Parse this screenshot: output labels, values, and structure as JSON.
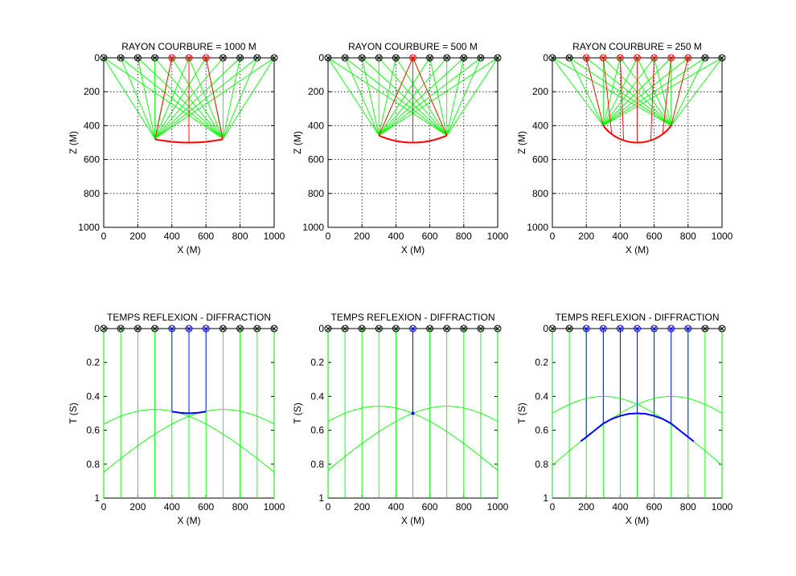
{
  "figure": {
    "background": "#ffffff",
    "text_color": "#000000"
  },
  "colors": {
    "direct_ray": "#00ff00",
    "reflected_ray": "#ff0000",
    "diffraction": "#0000ff",
    "receiver_marker": "#000000"
  },
  "chart_data": [
    {
      "type": "line",
      "panel": "top-left",
      "title": "RAYON COURBURE = 1000 M",
      "xlabel": "X (M)",
      "ylabel": "Z (M)",
      "xlim": [
        0,
        1000
      ],
      "ylim": [
        1000,
        0
      ],
      "y_reversed": true,
      "xticks": [
        0,
        200,
        400,
        600,
        800,
        1000
      ],
      "yticks": [
        0,
        200,
        400,
        600,
        800,
        1000
      ],
      "grid": true,
      "radius": 1000,
      "center": [
        500,
        -500
      ],
      "surface_points": [
        0,
        100,
        200,
        300,
        400,
        500,
        600,
        700,
        800,
        900,
        1000
      ],
      "highlighted_points": [
        400,
        500,
        600
      ],
      "reflector": {
        "x_start": 300,
        "x_end": 700
      },
      "ray_bundles": [
        {
          "point": [
            300,
            477
          ],
          "to": [
            0,
            100,
            200,
            300,
            400,
            500,
            600,
            700,
            800,
            900,
            1000
          ]
        },
        {
          "point": [
            700,
            477
          ],
          "to": [
            0,
            100,
            200,
            300,
            400,
            500,
            600,
            700,
            800,
            900,
            1000
          ]
        }
      ],
      "normals": [
        {
          "from": [
            400,
            0
          ],
          "to": [
            302,
            479
          ]
        },
        {
          "from": [
            500,
            0
          ],
          "to": [
            500,
            500
          ]
        },
        {
          "from": [
            600,
            0
          ],
          "to": [
            698,
            479
          ]
        }
      ]
    },
    {
      "type": "line",
      "panel": "top-middle",
      "title": "RAYON COURBURE = 500 M",
      "xlabel": "X (M)",
      "ylabel": "Z (M)",
      "xlim": [
        0,
        1000
      ],
      "ylim": [
        1000,
        0
      ],
      "y_reversed": true,
      "xticks": [
        0,
        200,
        400,
        600,
        800,
        1000
      ],
      "yticks": [
        0,
        200,
        400,
        600,
        800,
        1000
      ],
      "grid": true,
      "radius": 500,
      "center": [
        500,
        0
      ],
      "surface_points": [
        0,
        100,
        200,
        300,
        400,
        500,
        600,
        700,
        800,
        900,
        1000
      ],
      "highlighted_points": [
        500
      ],
      "reflector": {
        "x_start": 300,
        "x_end": 700
      },
      "ray_bundles": [
        {
          "point": [
            300,
            458
          ],
          "to": [
            0,
            100,
            200,
            300,
            400,
            500,
            600,
            700,
            800,
            900,
            1000
          ]
        },
        {
          "point": [
            700,
            458
          ],
          "to": [
            0,
            100,
            200,
            300,
            400,
            500,
            600,
            700,
            800,
            900,
            1000
          ]
        }
      ],
      "normals": [
        {
          "from": [
            500,
            0
          ],
          "to": [
            300,
            458
          ]
        },
        {
          "from": [
            500,
            0
          ],
          "to": [
            500,
            500
          ]
        },
        {
          "from": [
            500,
            0
          ],
          "to": [
            700,
            458
          ]
        }
      ]
    },
    {
      "type": "line",
      "panel": "top-right",
      "title": "RAYON COURBURE = 250 M",
      "xlabel": "X (M)",
      "ylabel": "Z (M)",
      "xlim": [
        0,
        1000
      ],
      "ylim": [
        1000,
        0
      ],
      "y_reversed": true,
      "xticks": [
        0,
        200,
        400,
        600,
        800,
        1000
      ],
      "yticks": [
        0,
        200,
        400,
        600,
        800,
        1000
      ],
      "grid": true,
      "radius": 250,
      "center": [
        500,
        250
      ],
      "surface_points": [
        0,
        100,
        200,
        300,
        400,
        500,
        600,
        700,
        800,
        900,
        1000
      ],
      "highlighted_points": [
        200,
        300,
        400,
        500,
        600,
        700,
        800
      ],
      "reflector": {
        "x_start": 300,
        "x_end": 700
      },
      "ray_bundles": [
        {
          "point": [
            300,
            400
          ],
          "to": [
            0,
            100,
            200,
            300,
            400,
            500,
            600,
            700,
            800,
            900,
            1000
          ]
        },
        {
          "point": [
            700,
            400
          ],
          "to": [
            0,
            100,
            200,
            300,
            400,
            500,
            600,
            700,
            800,
            900,
            1000
          ]
        }
      ],
      "normals": [
        {
          "from": [
            200,
            0
          ],
          "to": [
            300,
            400
          ]
        },
        {
          "from": [
            300,
            0
          ],
          "to": [
            350,
            450
          ]
        },
        {
          "from": [
            400,
            0
          ],
          "to": [
            420,
            487
          ]
        },
        {
          "from": [
            500,
            0
          ],
          "to": [
            500,
            500
          ]
        },
        {
          "from": [
            600,
            0
          ],
          "to": [
            580,
            487
          ]
        },
        {
          "from": [
            700,
            0
          ],
          "to": [
            650,
            450
          ]
        },
        {
          "from": [
            800,
            0
          ],
          "to": [
            700,
            400
          ]
        }
      ]
    },
    {
      "type": "line",
      "panel": "bottom-left",
      "title": "TEMPS REFLEXION - DIFFRACTION",
      "xlabel": "X (M)",
      "ylabel": "T (S)",
      "xlim": [
        0,
        1000
      ],
      "ylim": [
        1,
        0
      ],
      "y_reversed": true,
      "xticks": [
        0,
        200,
        400,
        600,
        800,
        1000
      ],
      "yticks": [
        0,
        0.2,
        0.4,
        0.6,
        0.8,
        1
      ],
      "ytick_labels": [
        "0",
        "0.2",
        "0.4",
        "0.6",
        "0.8",
        "1"
      ],
      "grid": false,
      "surface_points": [
        0,
        100,
        200,
        300,
        400,
        500,
        600,
        700,
        800,
        900,
        1000
      ],
      "highlighted_points": [
        400,
        500,
        600
      ],
      "series": [
        {
          "role": "diffraction",
          "apex_x": 300,
          "apex_t": 0.477
        },
        {
          "role": "diffraction",
          "apex_x": 700,
          "apex_t": 0.477
        },
        {
          "role": "reflection",
          "x": [
            400,
            450,
            500,
            550,
            600
          ],
          "t": [
            0.49,
            0.497,
            0.5,
            0.497,
            0.49
          ]
        }
      ]
    },
    {
      "type": "line",
      "panel": "bottom-middle",
      "title": "TEMPS REFLEXION - DIFFRACTION",
      "xlabel": "X (M)",
      "ylabel": "T (S)",
      "xlim": [
        0,
        1000
      ],
      "ylim": [
        1,
        0
      ],
      "y_reversed": true,
      "xticks": [
        0,
        200,
        400,
        600,
        800,
        1000
      ],
      "yticks": [
        0,
        0.2,
        0.4,
        0.6,
        0.8,
        1
      ],
      "ytick_labels": [
        "0",
        "0.2",
        "0.4",
        "0.6",
        "0.8",
        "1"
      ],
      "grid": false,
      "surface_points": [
        0,
        100,
        200,
        300,
        400,
        500,
        600,
        700,
        800,
        900,
        1000
      ],
      "highlighted_points": [
        500
      ],
      "series": [
        {
          "role": "diffraction",
          "apex_x": 300,
          "apex_t": 0.458
        },
        {
          "role": "diffraction",
          "apex_x": 700,
          "apex_t": 0.458
        },
        {
          "role": "reflection",
          "x": [
            500
          ],
          "t": [
            0.5
          ]
        }
      ]
    },
    {
      "type": "line",
      "panel": "bottom-right",
      "title": "TEMPS REFLEXION - DIFFRACTION",
      "xlabel": "X (M)",
      "ylabel": "T (S)",
      "xlim": [
        0,
        1000
      ],
      "ylim": [
        1,
        0
      ],
      "y_reversed": true,
      "xticks": [
        0,
        200,
        400,
        600,
        800,
        1000
      ],
      "yticks": [
        0,
        0.2,
        0.4,
        0.6,
        0.8,
        1
      ],
      "ytick_labels": [
        "0",
        "0.2",
        "0.4",
        "0.6",
        "0.8",
        "1"
      ],
      "grid": false,
      "surface_points": [
        0,
        100,
        200,
        300,
        400,
        500,
        600,
        700,
        800,
        900,
        1000
      ],
      "highlighted_points": [
        200,
        300,
        400,
        500,
        600,
        700,
        800
      ],
      "series": [
        {
          "role": "diffraction",
          "apex_x": 300,
          "apex_t": 0.4
        },
        {
          "role": "diffraction",
          "apex_x": 700,
          "apex_t": 0.4
        },
        {
          "role": "reflection",
          "x": [
            167,
            200,
            250,
            300,
            350,
            400,
            450,
            500,
            550,
            600,
            650,
            700,
            750,
            800,
            833
          ],
          "t": [
            0.665,
            0.64,
            0.6,
            0.56,
            0.533,
            0.515,
            0.503,
            0.5,
            0.503,
            0.515,
            0.533,
            0.56,
            0.6,
            0.64,
            0.665
          ]
        }
      ]
    }
  ]
}
